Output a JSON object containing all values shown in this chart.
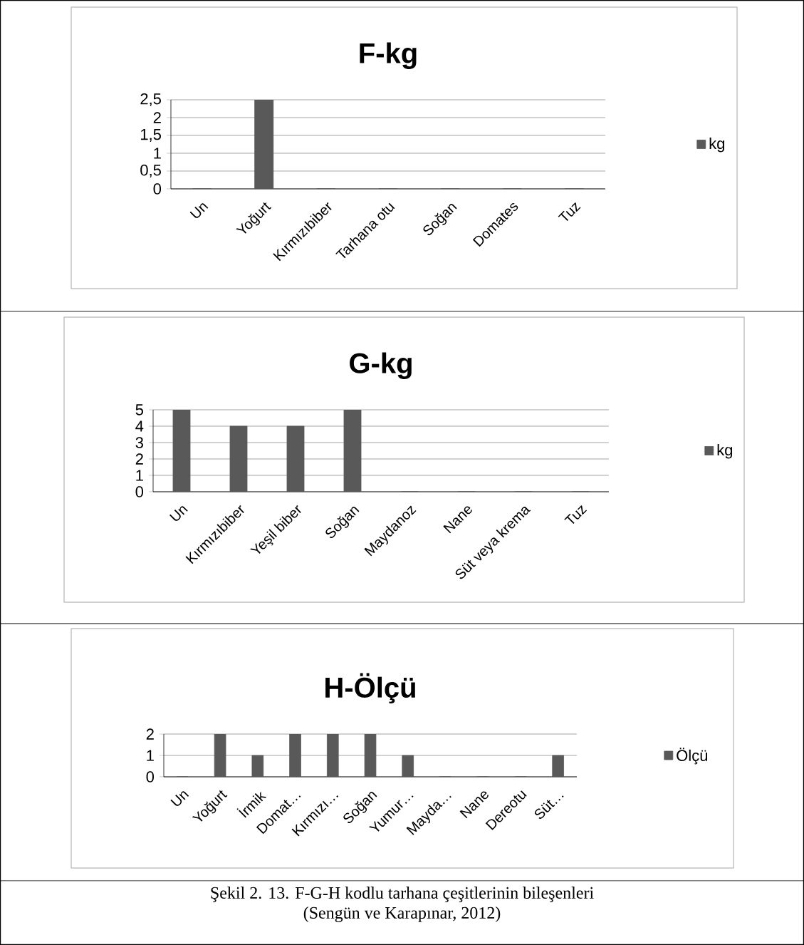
{
  "chart_data": [
    {
      "type": "bar",
      "title": "F-kg",
      "categories": [
        "Un",
        "Yoğurt",
        "Kırmızıbiber",
        "Tarhana otu",
        "Soğan",
        "Domates",
        "Tuz"
      ],
      "series": [
        {
          "name": "kg",
          "color": "#595959",
          "values": [
            0,
            2.5,
            0,
            0,
            0,
            0,
            0
          ]
        }
      ],
      "ylim": [
        0,
        2.5
      ],
      "yticks": [
        0,
        {
          "value": 0.5,
          "label": "0,5"
        },
        1,
        {
          "value": 1.5,
          "label": "1,5"
        },
        2,
        {
          "value": 2.5,
          "label": "2,5"
        }
      ],
      "grid": "y",
      "legend": "right"
    },
    {
      "type": "bar",
      "title": "G-kg",
      "categories": [
        "Un",
        "Kırmızıbiber",
        "Yeşil biber",
        "Soğan",
        "Maydanoz",
        "Nane",
        "Süt veya krema",
        "Tuz"
      ],
      "series": [
        {
          "name": "kg",
          "color": "#595959",
          "values": [
            5,
            4,
            4,
            5,
            0,
            0,
            0,
            0
          ]
        }
      ],
      "ylim": [
        0,
        5
      ],
      "yticks": [
        0,
        1,
        2,
        3,
        4,
        5
      ],
      "grid": "y",
      "legend": "right"
    },
    {
      "type": "bar",
      "title": "H-Ölçü",
      "categories": [
        "Un",
        "Yoğurt",
        "İrmik",
        "Domat…",
        "Kırmızı…",
        "Soğan",
        "Yumur…",
        "Mayda…",
        "Nane",
        "Dereotu",
        "Süt…"
      ],
      "series": [
        {
          "name": "Ölçü",
          "color": "#595959",
          "values": [
            0,
            2,
            1,
            2,
            2,
            2,
            1,
            0,
            0,
            0,
            1
          ]
        }
      ],
      "ylim": [
        0,
        2
      ],
      "yticks": [
        0,
        1,
        2
      ],
      "grid": "y",
      "legend": "right",
      "annotations": [
        "Şekil 2. 13. F-G-H kodlu tarhana çeşitlerinin bileşenleri",
        "(Sengün ve Karapınar, 2012)"
      ]
    }
  ]
}
